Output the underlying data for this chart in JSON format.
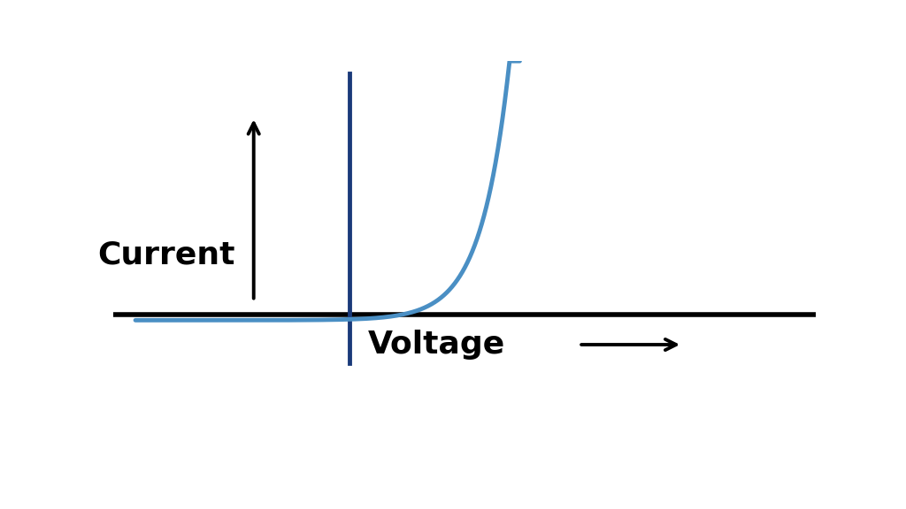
{
  "background_color": "#ffffff",
  "diode_color": "#4a8fc4",
  "axis_color": "#000000",
  "vline_color": "#1a3a7a",
  "current_label": "Current",
  "voltage_label": "Voltage",
  "label_fontsize": 26,
  "label_fontweight": "bold",
  "arrow_color": "#000000",
  "diode_linewidth": 3.5,
  "axis_linewidth": 4.0,
  "vline_linewidth": 3.5,
  "figsize": [
    10.24,
    5.76
  ],
  "dpi": 100,
  "xlim": [
    -3.5,
    6.0
  ],
  "ylim": [
    -3.0,
    5.5
  ],
  "vline_x": -0.3,
  "threshold": 0.4,
  "I_s": 0.12,
  "V_T": 0.38,
  "v_curve_start": -3.2,
  "v_curve_end": 2.0
}
